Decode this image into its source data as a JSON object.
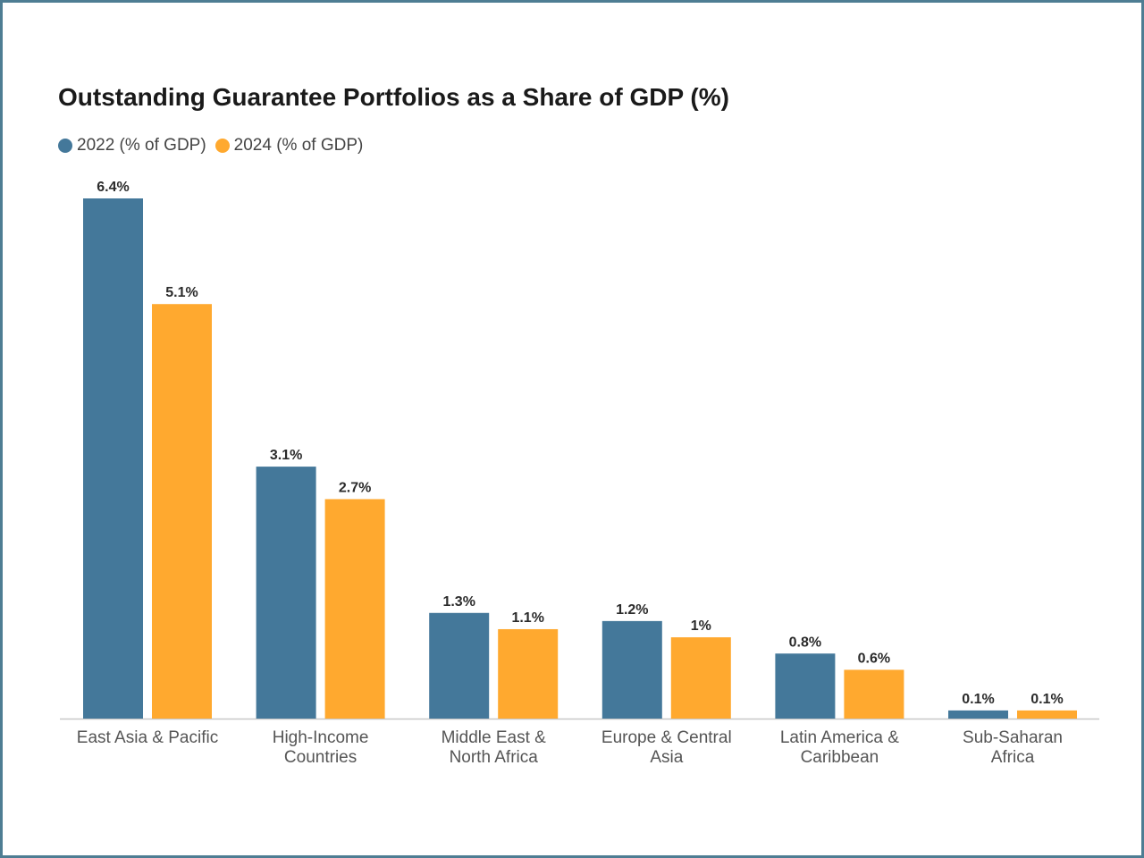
{
  "chart_data": {
    "type": "bar",
    "title": "Outstanding Guarantee Portfolios as a Share of GDP (%)",
    "categories": [
      [
        "East Asia & Pacific"
      ],
      [
        "High-Income",
        "Countries"
      ],
      [
        "Middle East &",
        "North Africa"
      ],
      [
        "Europe & Central",
        "Asia"
      ],
      [
        "Latin America &",
        "Caribbean"
      ],
      [
        "Sub-Saharan",
        "Africa"
      ]
    ],
    "series": [
      {
        "name": "2022 (% of GDP)",
        "color": "#44789a",
        "values": [
          6.4,
          3.1,
          1.3,
          1.2,
          0.8,
          0.1
        ],
        "labels": [
          "6.4%",
          "3.1%",
          "1.3%",
          "1.2%",
          "0.8%",
          "0.1%"
        ]
      },
      {
        "name": "2024 (% of GDP)",
        "color": "#ffa92f",
        "values": [
          5.1,
          2.7,
          1.1,
          1.0,
          0.6,
          0.1
        ],
        "labels": [
          "5.1%",
          "2.7%",
          "1.1%",
          "1%",
          "0.6%",
          "0.1%"
        ]
      }
    ],
    "legend_position": "top-left",
    "grid": false,
    "ylim": [
      0,
      6.4
    ]
  }
}
